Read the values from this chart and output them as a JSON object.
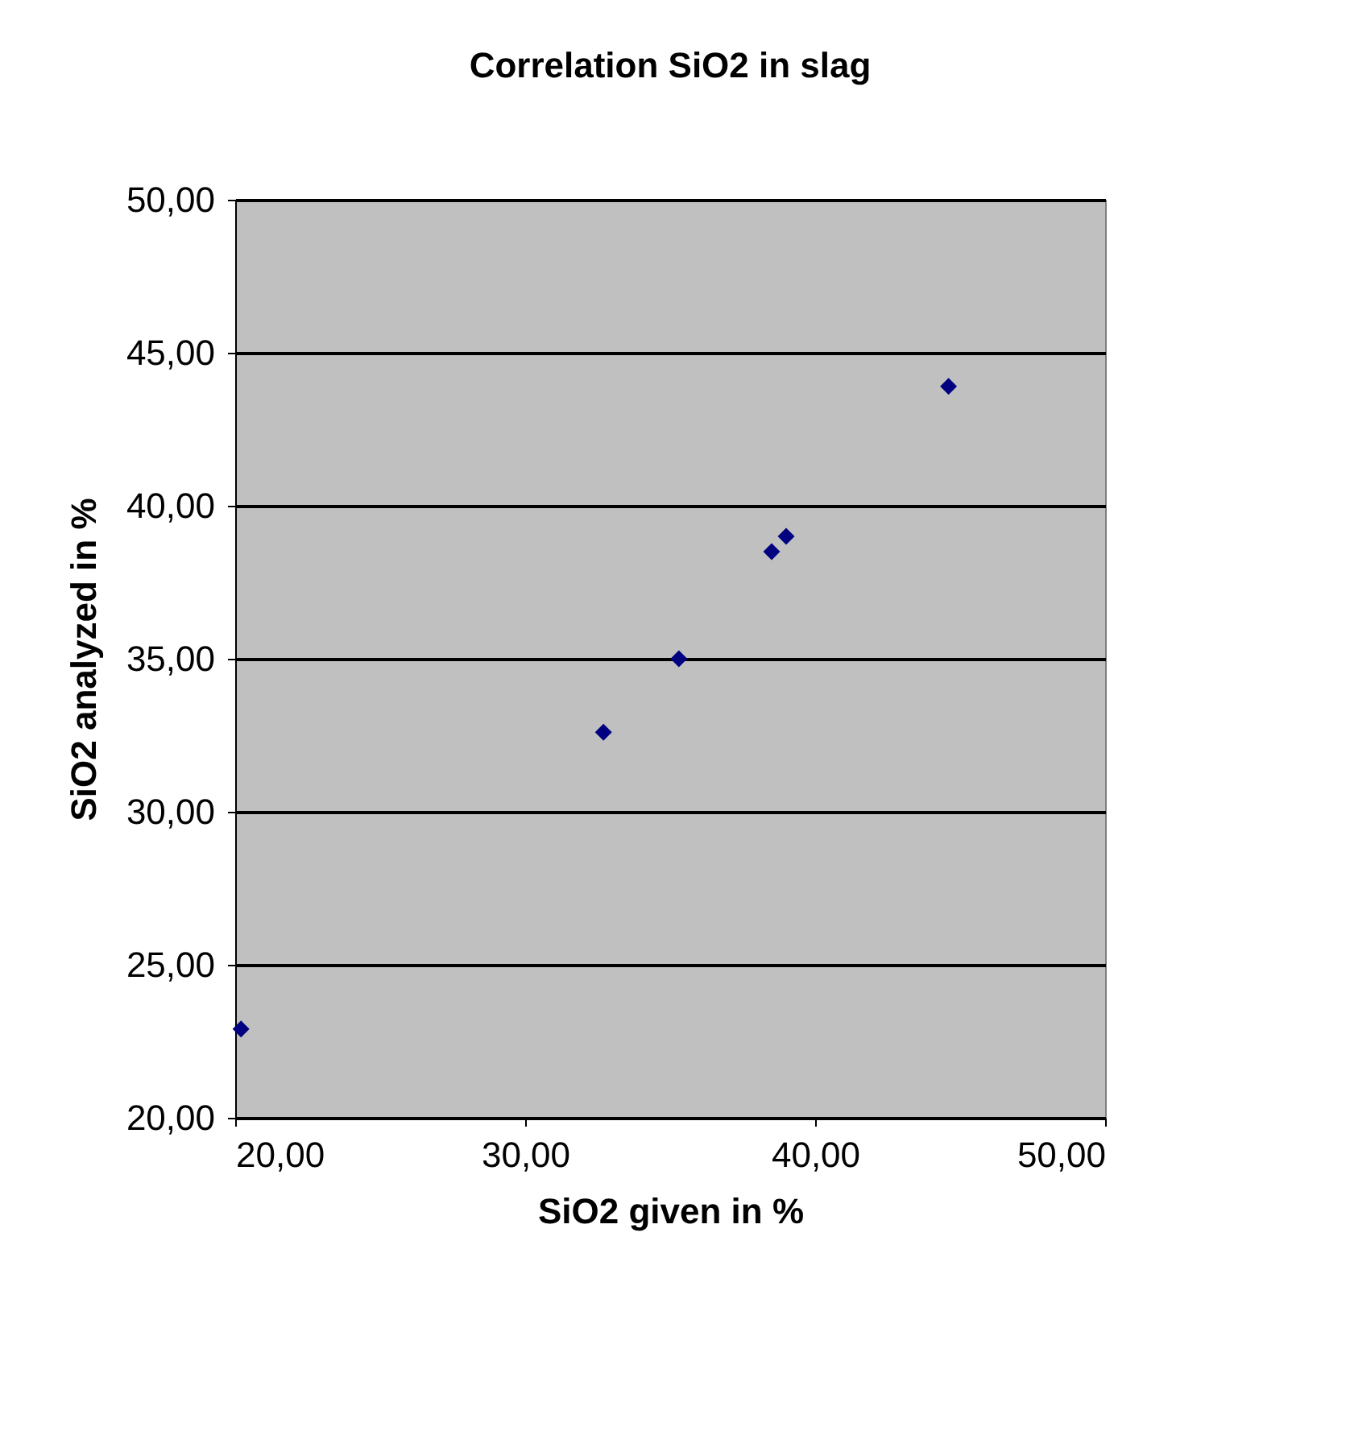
{
  "chart_data": {
    "type": "scatter",
    "title": "Correlation SiO2 in slag",
    "xlabel": "SiO2 given in %",
    "ylabel": "SiO2 analyzed in %",
    "x": [
      20.2,
      32.7,
      35.3,
      38.5,
      39.0,
      44.6
    ],
    "series": [
      {
        "color": "#000080",
        "values": [
          22.9,
          32.6,
          35.0,
          38.5,
          39.0,
          43.9
        ]
      }
    ],
    "xlim": [
      20,
      50
    ],
    "ylim": [
      20,
      50
    ],
    "xticks": [
      {
        "value": 20,
        "label": "20,00"
      },
      {
        "value": 30,
        "label": "30,00"
      },
      {
        "value": 40,
        "label": "40,00"
      },
      {
        "value": 50,
        "label": "50,00"
      }
    ],
    "yticks": [
      {
        "value": 20,
        "label": "20,00"
      },
      {
        "value": 25,
        "label": "25,00"
      },
      {
        "value": 30,
        "label": "30,00"
      },
      {
        "value": 35,
        "label": "35,00"
      },
      {
        "value": 40,
        "label": "40,00"
      },
      {
        "value": 45,
        "label": "45,00"
      },
      {
        "value": 50,
        "label": "50,00"
      }
    ],
    "grid": "y",
    "marker": "diamond",
    "legend": false
  }
}
